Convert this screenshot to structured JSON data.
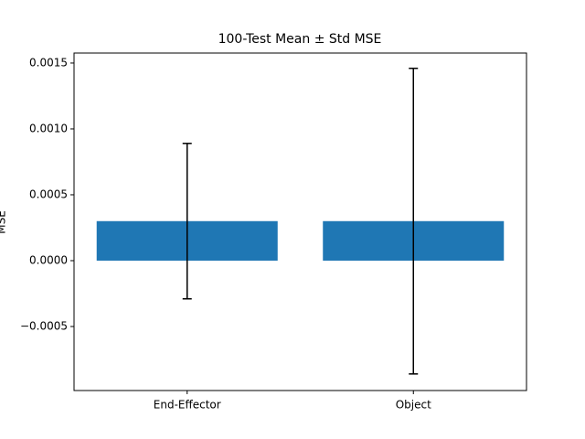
{
  "chart_data": {
    "type": "bar",
    "title": "100-Test Mean ± Std MSE",
    "y_label": "MSE",
    "categories": [
      "End-Effector",
      "Object"
    ],
    "values": [
      0.0003,
      0.0003
    ],
    "errors": [
      0.00059,
      0.00116
    ],
    "color": "#1f77b4",
    "ylim": [
      -0.000986,
      0.001576
    ],
    "yticks": [
      {
        "value": -0.0005,
        "label": "−0.0005"
      },
      {
        "value": 0,
        "label": "0.0000"
      },
      0.0005,
      {
        "value": 0.001,
        "label": "0.0010"
      },
      0.0015
    ]
  }
}
